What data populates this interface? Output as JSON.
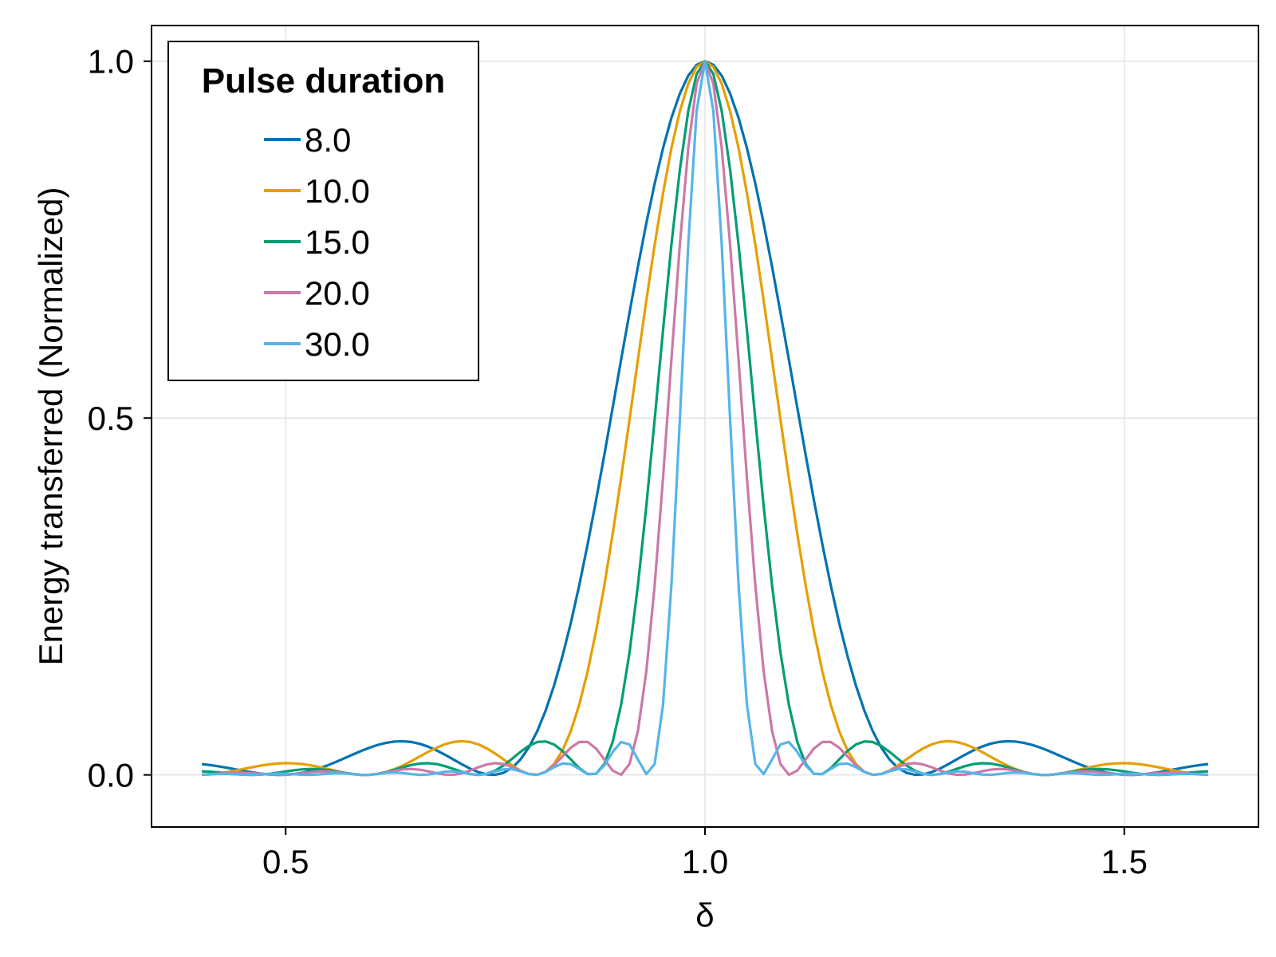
{
  "chart_data": {
    "type": "line",
    "xlabel": "δ",
    "ylabel": "Energy transferred (Normalized)",
    "xlim": [
      0.34,
      1.66
    ],
    "ylim": [
      -0.073,
      1.05
    ],
    "x_ticks": [
      0.5,
      1.0,
      1.5
    ],
    "x_tick_labels": [
      "0.5",
      "1.0",
      "1.5"
    ],
    "y_ticks": [
      0.0,
      0.5,
      1.0
    ],
    "y_tick_labels": [
      "0.0",
      "0.5",
      "1.0"
    ],
    "grid": true,
    "legend": {
      "title": "Pulse duration",
      "position": "top-left"
    },
    "x_range": [
      0.4,
      1.6
    ],
    "x_step": 0.01,
    "series": [
      {
        "name": "8.0",
        "color": "#0072B2",
        "pulse_duration": 8.0
      },
      {
        "name": "10.0",
        "color": "#E69F00",
        "pulse_duration": 10.0
      },
      {
        "name": "15.0",
        "color": "#009E73",
        "pulse_duration": 15.0
      },
      {
        "name": "20.0",
        "color": "#CC79A7",
        "pulse_duration": 20.0
      },
      {
        "name": "30.0",
        "color": "#56B4E9",
        "pulse_duration": 30.0
      }
    ]
  }
}
